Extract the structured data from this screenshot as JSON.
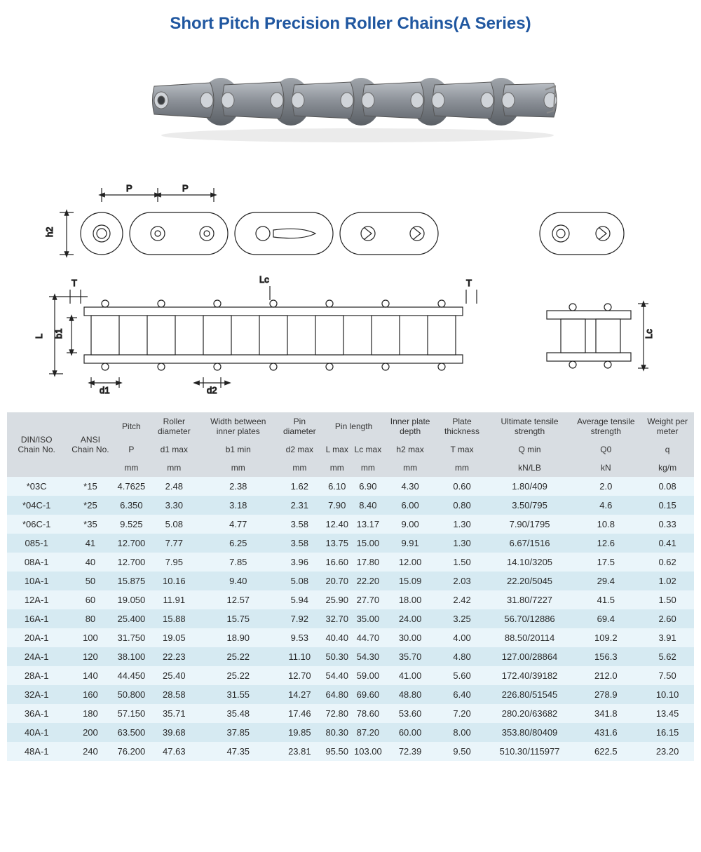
{
  "title": "Short Pitch Precision Roller Chains(A Series)",
  "colors": {
    "title_color": "#2057a0",
    "header_bg": "#d8dde2",
    "row_odd": "#eaf5fa",
    "row_even": "#d6eaf2",
    "chain_gray": "#8d9299",
    "chain_dark": "#6b7077",
    "diagram_line": "#222222",
    "diagram_fill": "#ffffff"
  },
  "diagram_labels": {
    "pitch": "P",
    "h2": "h2",
    "T": "T",
    "Lc": "Lc",
    "L": "L",
    "b1": "b1",
    "d1": "d1",
    "d2": "d2"
  },
  "table": {
    "header_row1": [
      "DIN/ISO Chain No.",
      "ANSI Chain No.",
      "Pitch",
      "Roller diameter",
      "Width between inner plates",
      "Pin diameter",
      "Pin length",
      "Inner plate depth",
      "Plate thickness",
      "Ultimate tensile strength",
      "Average tensile strength",
      "Weight per meter"
    ],
    "header_row2_symbols": [
      "",
      "",
      "P",
      "d1 max",
      "b1 min",
      "d2 max",
      "L max",
      "Lc max",
      "h2 max",
      "T max",
      "Q min",
      "Q0",
      "q"
    ],
    "header_row3_units": [
      "",
      "",
      "mm",
      "mm",
      "mm",
      "mm",
      "mm",
      "mm",
      "mm",
      "mm",
      "kN/LB",
      "kN",
      "kg/m"
    ],
    "rows": [
      [
        "*03C",
        "*15",
        "4.7625",
        "2.48",
        "2.38",
        "1.62",
        "6.10",
        "6.90",
        "4.30",
        "0.60",
        "1.80/409",
        "2.0",
        "0.08"
      ],
      [
        "*04C-1",
        "*25",
        "6.350",
        "3.30",
        "3.18",
        "2.31",
        "7.90",
        "8.40",
        "6.00",
        "0.80",
        "3.50/795",
        "4.6",
        "0.15"
      ],
      [
        "*06C-1",
        "*35",
        "9.525",
        "5.08",
        "4.77",
        "3.58",
        "12.40",
        "13.17",
        "9.00",
        "1.30",
        "7.90/1795",
        "10.8",
        "0.33"
      ],
      [
        "085-1",
        "41",
        "12.700",
        "7.77",
        "6.25",
        "3.58",
        "13.75",
        "15.00",
        "9.91",
        "1.30",
        "6.67/1516",
        "12.6",
        "0.41"
      ],
      [
        "08A-1",
        "40",
        "12.700",
        "7.95",
        "7.85",
        "3.96",
        "16.60",
        "17.80",
        "12.00",
        "1.50",
        "14.10/3205",
        "17.5",
        "0.62"
      ],
      [
        "10A-1",
        "50",
        "15.875",
        "10.16",
        "9.40",
        "5.08",
        "20.70",
        "22.20",
        "15.09",
        "2.03",
        "22.20/5045",
        "29.4",
        "1.02"
      ],
      [
        "12A-1",
        "60",
        "19.050",
        "11.91",
        "12.57",
        "5.94",
        "25.90",
        "27.70",
        "18.00",
        "2.42",
        "31.80/7227",
        "41.5",
        "1.50"
      ],
      [
        "16A-1",
        "80",
        "25.400",
        "15.88",
        "15.75",
        "7.92",
        "32.70",
        "35.00",
        "24.00",
        "3.25",
        "56.70/12886",
        "69.4",
        "2.60"
      ],
      [
        "20A-1",
        "100",
        "31.750",
        "19.05",
        "18.90",
        "9.53",
        "40.40",
        "44.70",
        "30.00",
        "4.00",
        "88.50/20114",
        "109.2",
        "3.91"
      ],
      [
        "24A-1",
        "120",
        "38.100",
        "22.23",
        "25.22",
        "11.10",
        "50.30",
        "54.30",
        "35.70",
        "4.80",
        "127.00/28864",
        "156.3",
        "5.62"
      ],
      [
        "28A-1",
        "140",
        "44.450",
        "25.40",
        "25.22",
        "12.70",
        "54.40",
        "59.00",
        "41.00",
        "5.60",
        "172.40/39182",
        "212.0",
        "7.50"
      ],
      [
        "32A-1",
        "160",
        "50.800",
        "28.58",
        "31.55",
        "14.27",
        "64.80",
        "69.60",
        "48.80",
        "6.40",
        "226.80/51545",
        "278.9",
        "10.10"
      ],
      [
        "36A-1",
        "180",
        "57.150",
        "35.71",
        "35.48",
        "17.46",
        "72.80",
        "78.60",
        "53.60",
        "7.20",
        "280.20/63682",
        "341.8",
        "13.45"
      ],
      [
        "40A-1",
        "200",
        "63.500",
        "39.68",
        "37.85",
        "19.85",
        "80.30",
        "87.20",
        "60.00",
        "8.00",
        "353.80/80409",
        "431.6",
        "16.15"
      ],
      [
        "48A-1",
        "240",
        "76.200",
        "47.63",
        "47.35",
        "23.81",
        "95.50",
        "103.00",
        "72.39",
        "9.50",
        "510.30/115977",
        "622.5",
        "23.20"
      ]
    ]
  }
}
